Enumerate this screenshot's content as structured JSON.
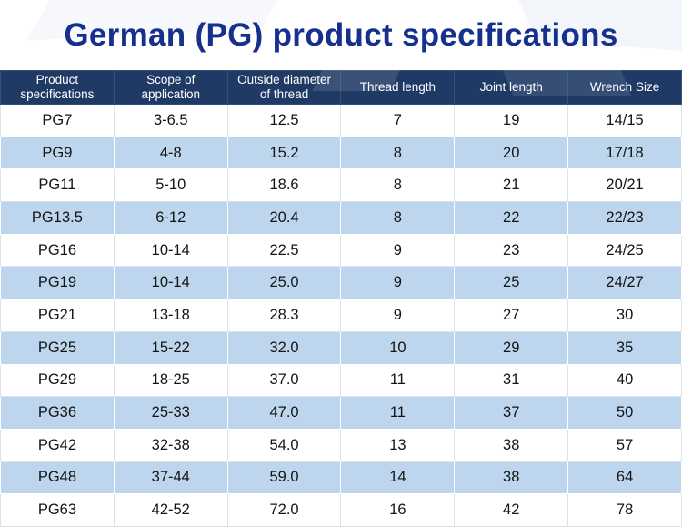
{
  "title": "German (PG) product specifications",
  "chart_data": {
    "type": "table",
    "title": "German (PG) product specifications",
    "columns": [
      "Product specifications",
      "Scope of application",
      "Outside diameter of thread",
      "Thread length",
      "Joint length",
      "Wrench Size"
    ],
    "rows": [
      [
        "PG7",
        "3-6.5",
        "12.5",
        "7",
        "19",
        "14/15"
      ],
      [
        "PG9",
        "4-8",
        "15.2",
        "8",
        "20",
        "17/18"
      ],
      [
        "PG11",
        "5-10",
        "18.6",
        "8",
        "21",
        "20/21"
      ],
      [
        "PG13.5",
        "6-12",
        "20.4",
        "8",
        "22",
        "22/23"
      ],
      [
        "PG16",
        "10-14",
        "22.5",
        "9",
        "23",
        "24/25"
      ],
      [
        "PG19",
        "10-14",
        "25.0",
        "9",
        "25",
        "24/27"
      ],
      [
        "PG21",
        "13-18",
        "28.3",
        "9",
        "27",
        "30"
      ],
      [
        "PG25",
        "15-22",
        "32.0",
        "10",
        "29",
        "35"
      ],
      [
        "PG29",
        "18-25",
        "37.0",
        "11",
        "31",
        "40"
      ],
      [
        "PG36",
        "25-33",
        "47.0",
        "11",
        "37",
        "50"
      ],
      [
        "PG42",
        "32-38",
        "54.0",
        "13",
        "38",
        "57"
      ],
      [
        "PG48",
        "37-44",
        "59.0",
        "14",
        "38",
        "64"
      ],
      [
        "PG63",
        "42-52",
        "72.0",
        "16",
        "42",
        "78"
      ]
    ]
  },
  "colors": {
    "title_color": "#15318d",
    "header_bg": "#203a66",
    "header_text": "#ffffff",
    "row_alt_bg": "#bdd6ee"
  }
}
